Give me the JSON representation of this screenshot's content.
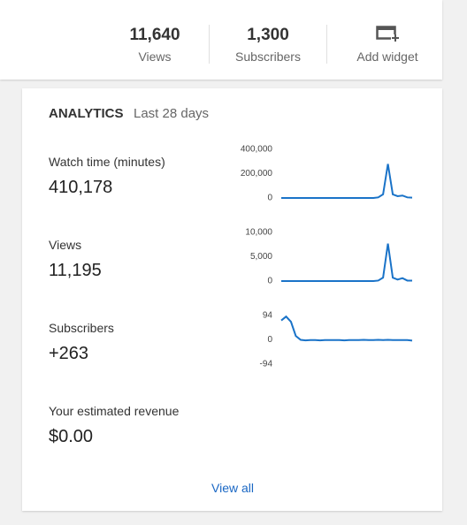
{
  "header": {
    "stats": [
      {
        "value": "11,640",
        "label": "Views"
      },
      {
        "value": "1,300",
        "label": "Subscribers"
      }
    ],
    "widget": "Add widget"
  },
  "analytics": {
    "title": "ANALYTICS",
    "period": "Last 28 days",
    "metrics": [
      {
        "label": "Watch time (minutes)",
        "value": "410,178",
        "chart": {
          "type": "line",
          "color": "#1a73c8",
          "values": [
            0,
            0,
            0,
            0,
            0,
            0,
            0,
            0,
            0,
            0,
            0,
            0,
            0,
            0,
            0,
            0,
            0,
            0,
            0,
            0,
            5000,
            30000,
            280000,
            30000,
            15000,
            20000,
            5000,
            3000
          ],
          "ylim": [
            0,
            400000
          ],
          "yticks": [
            {
              "value": 400000,
              "label": "400,000"
            },
            {
              "value": 200000,
              "label": "200,000"
            },
            0
          ]
        }
      },
      {
        "label": "Views",
        "value": "11,195",
        "chart": {
          "type": "line",
          "color": "#1a73c8",
          "values": [
            0,
            0,
            0,
            0,
            0,
            0,
            0,
            0,
            0,
            0,
            0,
            0,
            0,
            0,
            0,
            0,
            0,
            0,
            0,
            0,
            100,
            700,
            7700,
            700,
            300,
            600,
            100,
            100
          ],
          "ylim": [
            0,
            10000
          ],
          "yticks": [
            {
              "value": 10000,
              "label": "10,000"
            },
            {
              "value": 5000,
              "label": "5,000"
            },
            0
          ]
        }
      },
      {
        "label": "Subscribers",
        "value": "+263",
        "chart": {
          "type": "line",
          "color": "#1a73c8",
          "values": [
            75,
            90,
            70,
            15,
            0,
            -2,
            -1,
            -1,
            -2,
            -1,
            -1,
            -1,
            -1,
            -2,
            -1,
            -1,
            -1,
            0,
            -1,
            -1,
            0,
            -1,
            0,
            -1,
            -1,
            -1,
            -1,
            -3
          ],
          "ylim": [
            -94,
            94
          ],
          "yticks": [
            94,
            0,
            -94
          ]
        }
      },
      {
        "label": "Your estimated revenue",
        "value": "$0.00"
      }
    ],
    "link": "View all"
  }
}
